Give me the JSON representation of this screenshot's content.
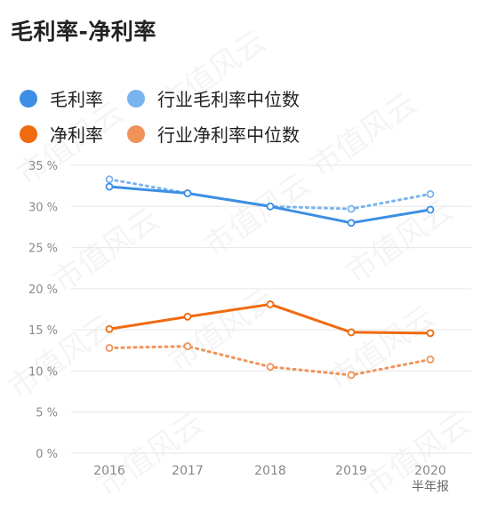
{
  "chart_data": {
    "type": "line",
    "title": "毛利率-净利率",
    "categories": [
      "2016",
      "2017",
      "2018",
      "2019",
      "2020"
    ],
    "category_sublabels": [
      "",
      "",
      "",
      "",
      "半年报"
    ],
    "ylim": [
      0,
      35
    ],
    "yticks": [
      0,
      5,
      10,
      15,
      20,
      25,
      30,
      35
    ],
    "ytick_suffix": " %",
    "grid": true,
    "legend_position": "top",
    "series": [
      {
        "name": "毛利率",
        "values": [
          32.4,
          31.6,
          30.0,
          28.0,
          29.6
        ],
        "color": "#3d8fe3",
        "style": "solid"
      },
      {
        "name": "行业毛利率中位数",
        "values": [
          33.3,
          31.6,
          30.0,
          29.7,
          31.5
        ],
        "color": "#78b4ee",
        "style": "dotted"
      },
      {
        "name": "净利率",
        "values": [
          15.1,
          16.6,
          18.1,
          14.7,
          14.6
        ],
        "color": "#ef6a10",
        "style": "solid"
      },
      {
        "name": "行业净利率中位数",
        "values": [
          12.8,
          13.0,
          10.5,
          9.5,
          11.4
        ],
        "color": "#f0935a",
        "style": "dotted"
      }
    ]
  },
  "watermark": "市值风云"
}
